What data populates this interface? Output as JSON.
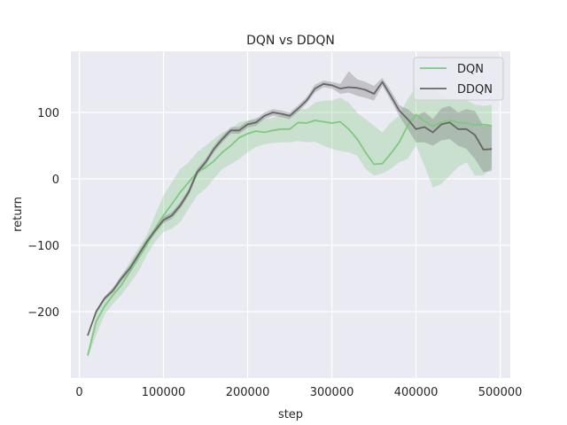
{
  "chart_data": {
    "type": "line",
    "title": "DQN vs DDQN",
    "xlabel": "step",
    "ylabel": "return",
    "xlim": [
      -10000,
      512000
    ],
    "ylim": [
      -300,
      192
    ],
    "xticks": [
      0,
      100000,
      200000,
      300000,
      400000,
      500000
    ],
    "xtick_labels": [
      "0",
      "100000",
      "200000",
      "300000",
      "400000",
      "500000"
    ],
    "yticks": [
      -200,
      -100,
      0,
      100
    ],
    "ytick_labels": [
      "−200",
      "−100",
      "0",
      "100"
    ],
    "grid": true,
    "legend_position": "upper-right",
    "background": "#eaeaf2",
    "x": [
      10000,
      20000,
      30000,
      40000,
      50000,
      60000,
      70000,
      80000,
      90000,
      100000,
      110000,
      120000,
      130000,
      140000,
      150000,
      160000,
      170000,
      180000,
      190000,
      200000,
      210000,
      220000,
      230000,
      240000,
      250000,
      260000,
      270000,
      280000,
      290000,
      300000,
      310000,
      320000,
      330000,
      340000,
      350000,
      360000,
      370000,
      380000,
      390000,
      400000,
      410000,
      420000,
      430000,
      440000,
      450000,
      460000,
      470000,
      480000,
      490000
    ],
    "series": [
      {
        "name": "DQN",
        "color": "#7fc97f",
        "band_opacity": 0.3,
        "values": [
          -266,
          -215,
          -192,
          -175,
          -160,
          -140,
          -120,
          -100,
          -75,
          -55,
          -38,
          -20,
          -5,
          10,
          17,
          27,
          40,
          50,
          62,
          68,
          72,
          70,
          73,
          75,
          75,
          85,
          84,
          88,
          86,
          84,
          86,
          75,
          60,
          40,
          22,
          23,
          38,
          55,
          80,
          97,
          87,
          79,
          85,
          88,
          85,
          84,
          81,
          82,
          80
        ],
        "lower": [
          -270,
          -235,
          -205,
          -188,
          -175,
          -158,
          -140,
          -115,
          -95,
          -80,
          -75,
          -65,
          -45,
          -25,
          -15,
          0,
          15,
          22,
          30,
          40,
          48,
          52,
          54,
          55,
          55,
          57,
          55,
          56,
          50,
          45,
          42,
          40,
          35,
          15,
          5,
          8,
          15,
          25,
          30,
          50,
          20,
          -13,
          -8,
          5,
          18,
          25,
          5,
          5,
          17
        ],
        "upper": [
          -262,
          -200,
          -180,
          -165,
          -148,
          -125,
          -105,
          -85,
          -55,
          -25,
          -5,
          15,
          25,
          40,
          50,
          60,
          70,
          75,
          85,
          88,
          92,
          90,
          92,
          96,
          96,
          105,
          105,
          115,
          118,
          118,
          122,
          115,
          100,
          90,
          80,
          70,
          85,
          95,
          120,
          138,
          135,
          135,
          125,
          120,
          120,
          118,
          112,
          110,
          112
        ]
      },
      {
        "name": "DDQN",
        "color": "#666666",
        "band_opacity": 0.3,
        "values": [
          -236,
          -200,
          -180,
          -168,
          -150,
          -135,
          -115,
          -95,
          -78,
          -62,
          -55,
          -40,
          -20,
          10,
          25,
          45,
          60,
          73,
          73,
          82,
          85,
          95,
          100,
          98,
          95,
          106,
          118,
          136,
          143,
          141,
          136,
          138,
          137,
          134,
          128,
          146,
          125,
          103,
          90,
          75,
          78,
          70,
          82,
          85,
          75,
          75,
          66,
          44,
          45
        ],
        "lower": [
          -238,
          -203,
          -183,
          -172,
          -155,
          -140,
          -120,
          -100,
          -83,
          -67,
          -60,
          -45,
          -25,
          5,
          20,
          40,
          55,
          68,
          68,
          77,
          80,
          90,
          95,
          93,
          90,
          101,
          113,
          130,
          138,
          136,
          128,
          130,
          125,
          122,
          118,
          140,
          118,
          95,
          75,
          55,
          55,
          50,
          58,
          60,
          50,
          45,
          30,
          10,
          12
        ],
        "upper": [
          -234,
          -197,
          -177,
          -164,
          -145,
          -130,
          -110,
          -90,
          -73,
          -57,
          -50,
          -35,
          -15,
          15,
          30,
          50,
          65,
          78,
          78,
          87,
          90,
          100,
          105,
          103,
          100,
          111,
          123,
          142,
          148,
          146,
          143,
          162,
          150,
          146,
          140,
          152,
          133,
          111,
          105,
          95,
          101,
          90,
          106,
          110,
          100,
          105,
          102,
          80,
          80
        ]
      }
    ]
  }
}
